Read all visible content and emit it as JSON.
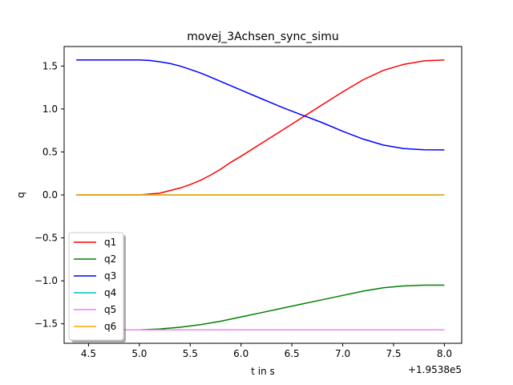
{
  "chart_data": {
    "type": "line",
    "title": "movej_3Achsen_sync_simu",
    "xlabel": "t in s",
    "ylabel": "q",
    "x_offset_label": "+1.9538e5",
    "xlim": [
      4.26,
      8.17
    ],
    "ylim": [
      -1.727,
      1.727
    ],
    "xticks": [
      4.5,
      5.0,
      5.5,
      6.0,
      6.5,
      7.0,
      7.5,
      8.0
    ],
    "xtick_labels": [
      "4.5",
      "5.0",
      "5.5",
      "6.0",
      "6.5",
      "7.0",
      "7.5",
      "8.0"
    ],
    "yticks": [
      -1.5,
      -1.0,
      -0.5,
      0.0,
      0.5,
      1.0,
      1.5
    ],
    "ytick_labels": [
      "−1.5",
      "−1.0",
      "−0.5",
      "0.0",
      "0.5",
      "1.0",
      "1.5"
    ],
    "grid": false,
    "legend_position": "lower-left",
    "series": [
      {
        "name": "q1",
        "color": "#ff0000",
        "x": [
          4.38,
          4.6,
          4.8,
          5.0,
          5.1,
          5.2,
          5.3,
          5.4,
          5.5,
          5.6,
          5.7,
          5.8,
          5.9,
          6.0,
          6.2,
          6.4,
          6.6,
          6.8,
          7.0,
          7.2,
          7.4,
          7.6,
          7.8,
          8.0
        ],
        "y": [
          0.0,
          0.0,
          0.0,
          0.0,
          0.01,
          0.02,
          0.05,
          0.08,
          0.12,
          0.17,
          0.23,
          0.3,
          0.38,
          0.45,
          0.6,
          0.75,
          0.9,
          1.05,
          1.2,
          1.34,
          1.45,
          1.52,
          1.56,
          1.57
        ]
      },
      {
        "name": "q2",
        "color": "#008000",
        "x": [
          4.38,
          4.8,
          5.0,
          5.2,
          5.4,
          5.6,
          5.8,
          6.0,
          6.2,
          6.4,
          6.6,
          6.8,
          7.0,
          7.2,
          7.4,
          7.6,
          7.8,
          8.0
        ],
        "y": [
          -1.571,
          -1.571,
          -1.57,
          -1.56,
          -1.54,
          -1.51,
          -1.47,
          -1.42,
          -1.37,
          -1.32,
          -1.27,
          -1.22,
          -1.17,
          -1.12,
          -1.08,
          -1.06,
          -1.05,
          -1.05
        ]
      },
      {
        "name": "q3",
        "color": "#0000ff",
        "x": [
          4.38,
          4.6,
          4.8,
          5.0,
          5.1,
          5.2,
          5.3,
          5.4,
          5.5,
          5.6,
          5.7,
          5.8,
          6.0,
          6.2,
          6.4,
          6.6,
          6.8,
          7.0,
          7.2,
          7.4,
          7.6,
          7.8,
          8.0
        ],
        "y": [
          1.57,
          1.57,
          1.57,
          1.57,
          1.565,
          1.55,
          1.53,
          1.5,
          1.46,
          1.42,
          1.37,
          1.32,
          1.22,
          1.12,
          1.02,
          0.93,
          0.84,
          0.74,
          0.65,
          0.58,
          0.54,
          0.525,
          0.524
        ]
      },
      {
        "name": "q4",
        "color": "#00bfbf",
        "x": [
          4.38,
          8.0
        ],
        "y": [
          0.0,
          0.0
        ]
      },
      {
        "name": "q5",
        "color": "#ee82ee",
        "x": [
          4.38,
          8.0
        ],
        "y": [
          -1.571,
          -1.571
        ]
      },
      {
        "name": "q6",
        "color": "#ffa500",
        "x": [
          4.38,
          8.0
        ],
        "y": [
          0.0,
          0.0
        ]
      }
    ]
  }
}
